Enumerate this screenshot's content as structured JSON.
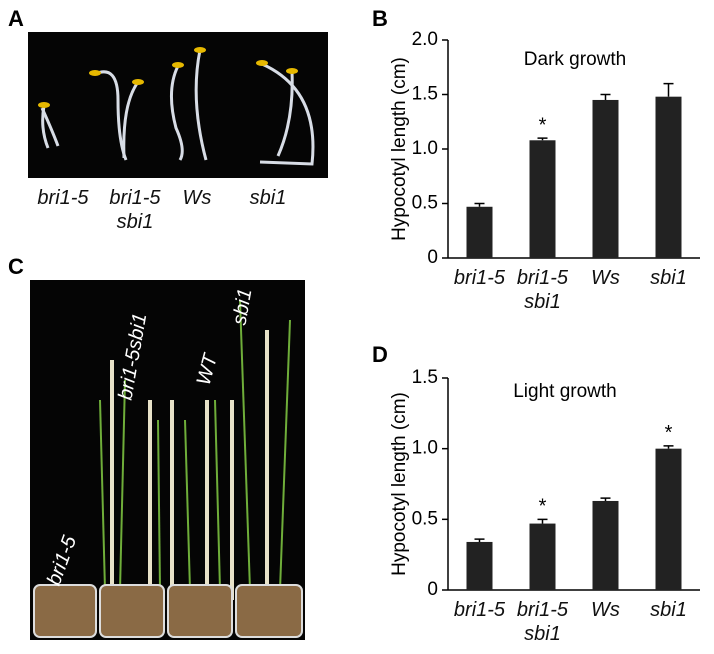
{
  "panels": {
    "a": "A",
    "b": "B",
    "c": "C",
    "d": "D"
  },
  "photo_a_labels": [
    "bri1-5",
    "bri1-5 sbi1",
    "Ws",
    "sbi1"
  ],
  "photo_c_labels": [
    "bri1-5",
    "bri1-5sbi1",
    "WT",
    "sbi1"
  ],
  "chart_data": [
    {
      "type": "bar",
      "title": "Dark growth",
      "y_label": "Hypocotyl length (cm)",
      "categories": [
        "bri1-5",
        "bri1-5 sbi1",
        "Ws",
        "sbi1"
      ],
      "series": [
        {
          "name": "Hypocotyl length",
          "color": "#222222",
          "values": [
            0.47,
            1.08,
            1.45,
            1.48
          ],
          "errors": [
            0.03,
            0.02,
            0.05,
            0.12
          ]
        }
      ],
      "significance": [
        null,
        "*",
        null,
        null
      ],
      "ylim": [
        0,
        2.0
      ],
      "yticks": [
        0,
        0.5,
        {
          "value": 1.0,
          "label": "1.0"
        },
        1.5,
        {
          "value": 2.0,
          "label": "2.0"
        }
      ]
    },
    {
      "type": "bar",
      "title": "Light growth",
      "y_label": "Hypocotyl length (cm)",
      "categories": [
        "bri1-5",
        "bri1-5 sbi1",
        "Ws",
        "sbi1"
      ],
      "series": [
        {
          "name": "Hypocotyl length",
          "color": "#222222",
          "values": [
            0.34,
            0.47,
            0.63,
            1.0
          ],
          "errors": [
            0.02,
            0.03,
            0.02,
            0.02
          ]
        }
      ],
      "significance": [
        null,
        "*",
        null,
        "*"
      ],
      "ylim": [
        0,
        1.5
      ],
      "yticks": [
        0,
        0.5,
        {
          "value": 1.0,
          "label": "1.0"
        },
        1.5
      ]
    }
  ]
}
